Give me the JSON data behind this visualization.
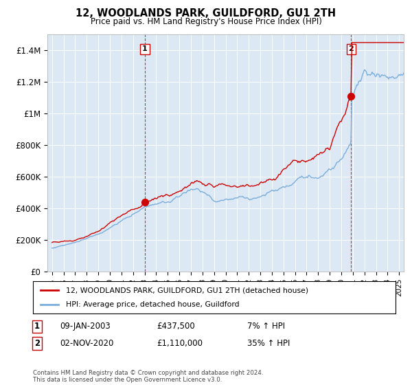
{
  "title": "12, WOODLANDS PARK, GUILDFORD, GU1 2TH",
  "subtitle": "Price paid vs. HM Land Registry's House Price Index (HPI)",
  "ylabel_ticks": [
    "£0",
    "£200K",
    "£400K",
    "£600K",
    "£800K",
    "£1M",
    "£1.2M",
    "£1.4M"
  ],
  "ytick_values": [
    0,
    200000,
    400000,
    600000,
    800000,
    1000000,
    1200000,
    1400000
  ],
  "ylim": [
    0,
    1500000
  ],
  "xlim_start": 1994.6,
  "xlim_end": 2025.4,
  "sale1_x": 2003.03,
  "sale1_y": 437500,
  "sale2_x": 2020.84,
  "sale2_y": 1110000,
  "sale1_date": "09-JAN-2003",
  "sale1_price": "£437,500",
  "sale1_hpi": "7% ↑ HPI",
  "sale2_date": "02-NOV-2020",
  "sale2_price": "£1,110,000",
  "sale2_hpi": "35% ↑ HPI",
  "legend_line1": "12, WOODLANDS PARK, GUILDFORD, GU1 2TH (detached house)",
  "legend_line2": "HPI: Average price, detached house, Guildford",
  "footer": "Contains HM Land Registry data © Crown copyright and database right 2024.\nThis data is licensed under the Open Government Licence v3.0.",
  "line_color_red": "#cc0000",
  "line_color_blue": "#7aaddb",
  "chart_bg_color": "#dce9f5",
  "background_color": "#ffffff",
  "grid_color": "#ffffff",
  "dashed_line_color": "#cc0000"
}
